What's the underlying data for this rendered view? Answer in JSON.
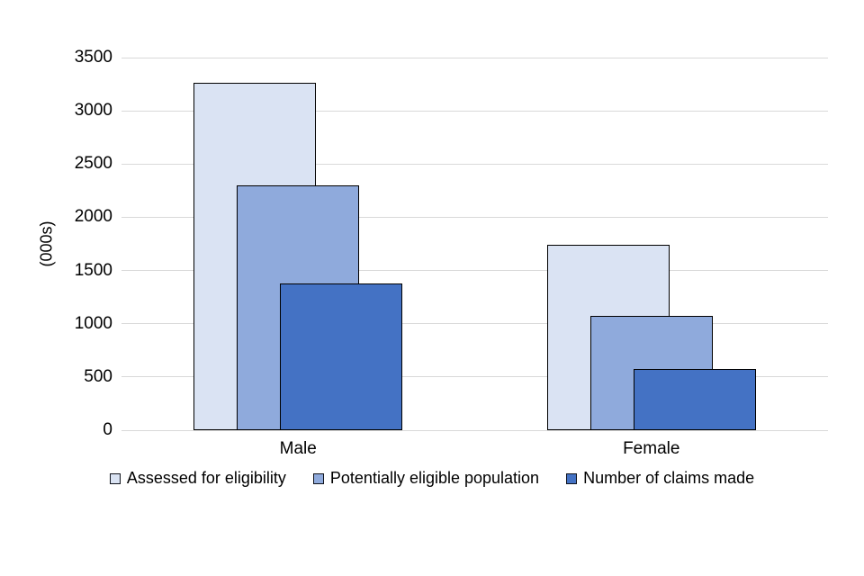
{
  "chart_data": {
    "type": "bar",
    "title": "",
    "xlabel": "",
    "ylabel": "(000s)",
    "categories": [
      "Male",
      "Female"
    ],
    "series": [
      {
        "name": "Assessed for eligibility",
        "color": "#dae3f3",
        "values": [
          3260,
          1745
        ]
      },
      {
        "name": "Potentially eligible population",
        "color": "#8faadc",
        "values": [
          2300,
          1070
        ]
      },
      {
        "name": "Number of claims made",
        "color": "#4472c4",
        "values": [
          1380,
          575
        ]
      }
    ],
    "ylim": [
      0,
      3500
    ],
    "yticks": [
      0,
      500,
      1000,
      1500,
      2000,
      2500,
      3000,
      3500
    ],
    "grid": true,
    "legend_position": "bottom",
    "bar_style": "overlapped-offset",
    "colors": {
      "bar_border": "#000000",
      "gridline": "#d9d9d9",
      "text": "#000000",
      "background": "#ffffff"
    }
  }
}
